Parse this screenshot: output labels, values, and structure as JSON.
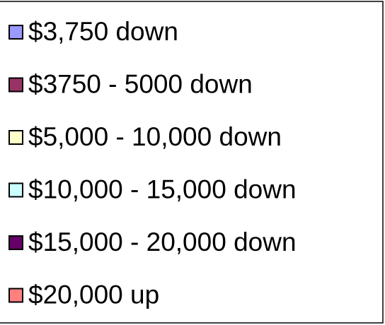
{
  "legend": {
    "items": [
      {
        "label": "$3,750 down",
        "color": "#9999ff"
      },
      {
        "label": "$3750 - 5000 down",
        "color": "#993366"
      },
      {
        "label": "$5,000 - 10,000 down",
        "color": "#ffffcc"
      },
      {
        "label": "$10,000 - 15,000 down",
        "color": "#ccffff"
      },
      {
        "label": "$15,000 - 20,000 down",
        "color": "#660066"
      },
      {
        "label": "$20,000 up",
        "color": "#ff8080"
      }
    ]
  }
}
